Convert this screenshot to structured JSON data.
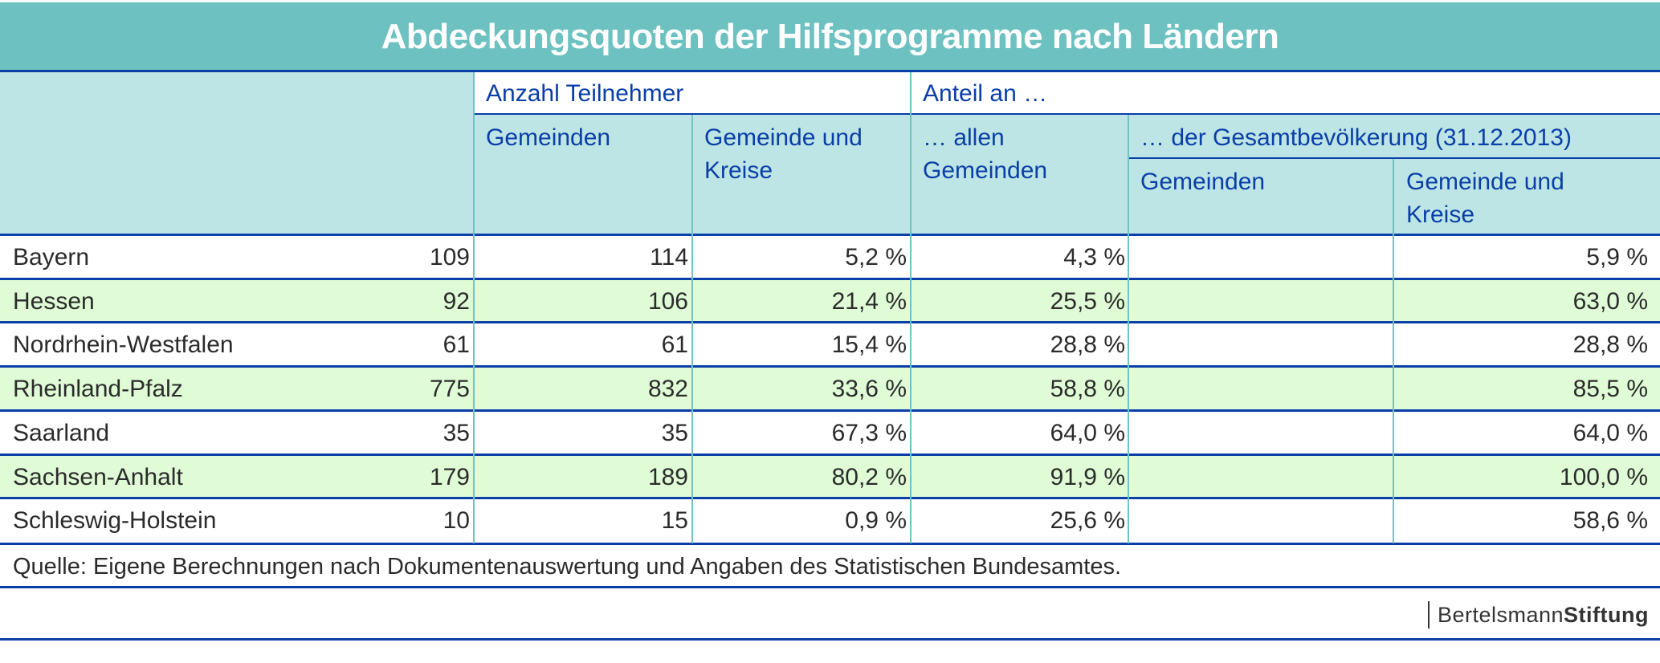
{
  "title": "Abdeckungsquoten der Hilfsprogramme nach Ländern",
  "header": {
    "group_anzahl": "Anzahl Teilnehmer",
    "group_anteil": "Anteil an …",
    "col_gemeinden": "Gemeinden",
    "col_gemeinde_kreise_line1": "Gemeinde und",
    "col_gemeinde_kreise_line2": "Kreise",
    "col_allen_line1": "… allen",
    "col_allen_line2": "Gemeinden",
    "group_bevoelkerung": "… der Gesamtbevölkerung (31.12.2013)",
    "col_bev_gemeinden": "Gemeinden",
    "col_bev_gk_line1": "Gemeinde und",
    "col_bev_gk_line2": "Kreise"
  },
  "rows": [
    {
      "land": "Bayern",
      "tn_gemeinden": "109",
      "tn_gemeinde_kreise": "114",
      "anteil_gemeinden": "5,2 %",
      "bev_gemeinden": "4,3 %",
      "bev_gemeinde_kreise": "5,9 %"
    },
    {
      "land": "Hessen",
      "tn_gemeinden": "92",
      "tn_gemeinde_kreise": "106",
      "anteil_gemeinden": "21,4 %",
      "bev_gemeinden": "25,5 %",
      "bev_gemeinde_kreise": "63,0 %"
    },
    {
      "land": "Nordrhein-Westfalen",
      "tn_gemeinden": "61",
      "tn_gemeinde_kreise": "61",
      "anteil_gemeinden": "15,4 %",
      "bev_gemeinden": "28,8 %",
      "bev_gemeinde_kreise": "28,8 %"
    },
    {
      "land": "Rheinland-Pfalz",
      "tn_gemeinden": "775",
      "tn_gemeinde_kreise": "832",
      "anteil_gemeinden": "33,6 %",
      "bev_gemeinden": "58,8 %",
      "bev_gemeinde_kreise": "85,5 %"
    },
    {
      "land": "Saarland",
      "tn_gemeinden": "35",
      "tn_gemeinde_kreise": "35",
      "anteil_gemeinden": "67,3 %",
      "bev_gemeinden": "64,0 %",
      "bev_gemeinde_kreise": "64,0 %"
    },
    {
      "land": "Sachsen-Anhalt",
      "tn_gemeinden": "179",
      "tn_gemeinde_kreise": "189",
      "anteil_gemeinden": "80,2 %",
      "bev_gemeinden": "91,9 %",
      "bev_gemeinde_kreise": "100,0 %"
    },
    {
      "land": "Schleswig-Holstein",
      "tn_gemeinden": "10",
      "tn_gemeinde_kreise": "15",
      "anteil_gemeinden": "0,9 %",
      "bev_gemeinden": "25,6 %",
      "bev_gemeinde_kreise": "58,6 %"
    }
  ],
  "source": "Quelle: Eigene Berechnungen nach Dokumentenauswertung und Angaben des Statistischen Bundesamtes.",
  "logo": {
    "part1": "Bertelsmann",
    "part2": "Stiftung"
  },
  "colors": {
    "title_band": "#6dc1c0",
    "header_bg": "#bee5e5",
    "header_text": "#0a3fa8",
    "row_alt": "#dffcd6",
    "rule": "#0a3fa8",
    "column_rule": "#6fc3c3"
  }
}
